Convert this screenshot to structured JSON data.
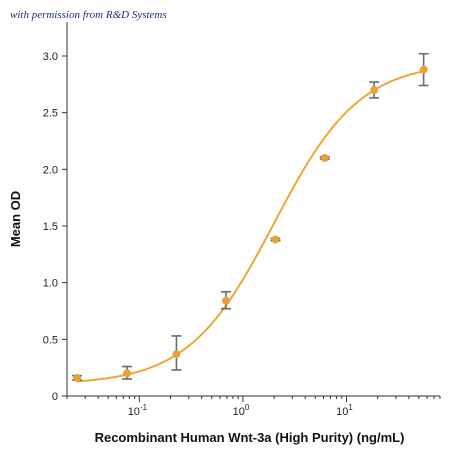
{
  "watermark": "with permission from R&D Systems",
  "chart_data": {
    "type": "scatter",
    "title": "",
    "xlabel": "Recombinant Human Wnt-3a (High Purity) (ng/mL)",
    "ylabel": "Mean OD",
    "xscale": "log",
    "xlim": [
      0.02,
      80
    ],
    "ylim": [
      0,
      3.3
    ],
    "grid": false,
    "legend": "none",
    "x_ticks": [
      {
        "value": 0.1,
        "base": "10",
        "exp": "-1"
      },
      {
        "value": 1,
        "base": "10",
        "exp": "0"
      },
      {
        "value": 10,
        "base": "10",
        "exp": "1"
      }
    ],
    "y_ticks": [
      {
        "value": 0,
        "label": "0"
      },
      {
        "value": 0.5,
        "label": "0.5"
      },
      {
        "value": 1.0,
        "label": "1.0"
      },
      {
        "value": 1.5,
        "label": "1.5"
      },
      {
        "value": 2.0,
        "label": "2.0"
      },
      {
        "value": 2.5,
        "label": "2.5"
      },
      {
        "value": 3.0,
        "label": "3.0"
      }
    ],
    "series": [
      {
        "x": [
          0.025,
          0.076,
          0.228,
          0.686,
          2.06,
          6.17,
          18.5,
          55.6
        ],
        "y": [
          0.16,
          0.2,
          0.37,
          0.84,
          1.38,
          2.1,
          2.7,
          2.88
        ],
        "err_low": [
          0.14,
          0.15,
          0.23,
          0.77,
          1.37,
          2.09,
          2.63,
          2.74
        ],
        "err_high": [
          0.18,
          0.26,
          0.53,
          0.92,
          1.39,
          2.11,
          2.77,
          3.02
        ]
      }
    ],
    "curve": {
      "type": "4PL",
      "bottom": 0.1,
      "top": 2.95,
      "ec50": 2.0,
      "hill": 1.05
    },
    "colors": {
      "curve": "#f0a637",
      "points": "#e8a23a",
      "error_bars": "#6b6b6b",
      "axis": "#333333"
    }
  }
}
